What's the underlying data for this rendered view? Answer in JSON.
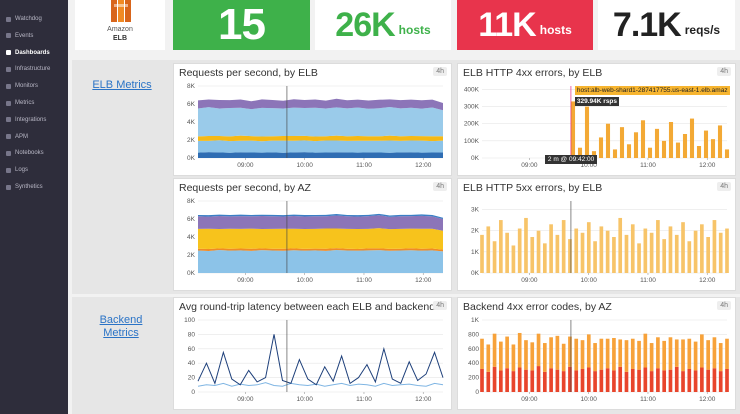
{
  "sidebar": {
    "items": [
      "Watchdog",
      "Events",
      "Dashboards",
      "Infrastructure",
      "Monitors",
      "Metrics",
      "Integrations",
      "APM",
      "Notebooks",
      "Logs",
      "Synthetics"
    ],
    "active": 2
  },
  "logo": {
    "line1": "Amazon",
    "line2": "ELB"
  },
  "stats": [
    {
      "value": "15",
      "unit": null,
      "style": "green"
    },
    {
      "value": "26K",
      "unit": "hosts",
      "style": "white-green"
    },
    {
      "value": "11K",
      "unit": "hosts",
      "style": "red"
    },
    {
      "value": "7.1K",
      "unit": "reqs/s",
      "style": "white"
    }
  ],
  "sections": [
    {
      "link": "ELB Metrics"
    },
    {
      "link": "Backend Metrics"
    }
  ],
  "widgets": [
    {
      "title": "Requests per second, by ELB",
      "badge": "4h",
      "type": "area",
      "ylim": [
        0,
        8000
      ],
      "yticks": [
        {
          "value": 0,
          "label": "0K"
        },
        {
          "value": 2000,
          "label": "2K"
        },
        {
          "value": 4000,
          "label": "4K"
        },
        {
          "value": 6000,
          "label": "6K"
        },
        {
          "value": 8000,
          "label": "8K"
        }
      ],
      "xlim": [
        492,
        740
      ],
      "xticks": [
        {
          "value": 540,
          "label": "09:00"
        },
        {
          "value": 600,
          "label": "10:00"
        },
        {
          "value": 660,
          "label": "11:00"
        },
        {
          "value": 720,
          "label": "12:00"
        }
      ],
      "cursor": 582,
      "series": [
        {
          "color": "#2f6db3",
          "values": [
            600,
            650,
            620,
            580,
            640,
            610,
            600,
            630,
            590,
            620,
            650,
            600,
            610,
            640,
            620,
            600,
            630,
            610,
            590,
            620,
            640,
            600,
            610,
            630
          ]
        },
        {
          "color": "#8cc3e8",
          "values": [
            1300,
            1250,
            1350,
            1300,
            1280,
            1320,
            1260,
            1300,
            1340,
            1290,
            1310,
            1270,
            1330,
            1300,
            1280,
            1320,
            1290,
            1310,
            1350,
            1280,
            1300,
            1330,
            1270,
            1300
          ]
        },
        {
          "color": "#f5b916",
          "values": [
            500,
            550,
            480,
            520,
            560,
            500,
            530,
            490,
            510,
            540,
            500,
            520,
            480,
            550,
            510,
            530,
            500,
            490,
            540,
            520,
            510,
            500,
            530,
            480
          ]
        },
        {
          "color": "#9acbea",
          "values": [
            3100,
            3200,
            3050,
            3150,
            3100,
            3000,
            3180,
            3120,
            3060,
            3150,
            3100,
            3200,
            3080,
            3140,
            3100,
            3160,
            3050,
            3120,
            3180,
            3100,
            3140,
            3060,
            3200,
            2900
          ]
        },
        {
          "color": "#8c75b8",
          "values": [
            900,
            850,
            950,
            880,
            920,
            870,
            940,
            900,
            860,
            930,
            890,
            910,
            870,
            950,
            900,
            880,
            920,
            940,
            860,
            910,
            890,
            930,
            870,
            800
          ]
        }
      ]
    },
    {
      "title": "ELB HTTP 4xx errors, by ELB",
      "badge": "4h",
      "type": "bar",
      "ylim": [
        0,
        420000
      ],
      "yticks": [
        {
          "value": 0,
          "label": "0K"
        },
        {
          "value": 100000,
          "label": "100K"
        },
        {
          "value": 200000,
          "label": "200K"
        },
        {
          "value": 300000,
          "label": "300K"
        },
        {
          "value": 400000,
          "label": "400K"
        }
      ],
      "xlim": [
        492,
        740
      ],
      "xticks": [
        {
          "value": 540,
          "label": "09:00"
        },
        {
          "value": 600,
          "label": "10:00"
        },
        {
          "value": 660,
          "label": "11:00"
        },
        {
          "value": 720,
          "label": "12:00"
        }
      ],
      "cursor": 582,
      "tooltip": {
        "host": "host:alb-web-shard1-287417755.us-east-1.elb.amaz",
        "value": "329.94K rsps",
        "time": "2 m @ 09:42:00"
      },
      "series": [
        {
          "color": "#f3a935",
          "values": [
            0,
            0,
            0,
            0,
            0,
            0,
            0,
            0,
            0,
            0,
            0,
            0,
            5000,
            329940,
            60000,
            300000,
            40000,
            120000,
            200000,
            50000,
            180000,
            80000,
            150000,
            220000,
            60000,
            170000,
            100000,
            210000,
            90000,
            140000,
            230000,
            70000,
            160000,
            110000,
            190000,
            50000
          ]
        }
      ]
    },
    {
      "title": "Requests per second, by AZ",
      "badge": "4h",
      "type": "area",
      "ylim": [
        0,
        8000
      ],
      "yticks": [
        {
          "value": 0,
          "label": "0K"
        },
        {
          "value": 2000,
          "label": "2K"
        },
        {
          "value": 4000,
          "label": "4K"
        },
        {
          "value": 6000,
          "label": "6K"
        },
        {
          "value": 8000,
          "label": "8K"
        }
      ],
      "xlim": [
        492,
        740
      ],
      "xticks": [
        {
          "value": 540,
          "label": "09:00"
        },
        {
          "value": 600,
          "label": "10:00"
        },
        {
          "value": 660,
          "label": "11:00"
        },
        {
          "value": 720,
          "label": "12:00"
        }
      ],
      "cursor": 582,
      "series": [
        {
          "color": "#8cc3e8",
          "values": [
            2500,
            2450,
            2550,
            2480,
            2520,
            2460,
            2540,
            2500,
            2470,
            2530,
            2490,
            2510,
            2460,
            2550,
            2500,
            2480,
            2520,
            2540,
            2470,
            2500,
            2530,
            2490,
            2510,
            2400
          ]
        },
        {
          "color": "#f08a24",
          "values": [
            200,
            220,
            190,
            210,
            200,
            230,
            190,
            200,
            220,
            210,
            190,
            200,
            230,
            210,
            200,
            190,
            220,
            200,
            210,
            190,
            220,
            200,
            210,
            200
          ]
        },
        {
          "color": "#f7c31c",
          "values": [
            2200,
            2250,
            2150,
            2220,
            2180,
            2240,
            2160,
            2200,
            2230,
            2170,
            2210,
            2190,
            2250,
            2180,
            2200,
            2220,
            2160,
            2240,
            2190,
            2210,
            2180,
            2230,
            2200,
            2100
          ]
        },
        {
          "color": "#8c75b8",
          "values": [
            1400,
            1350,
            1450,
            1380,
            1420,
            1370,
            1440,
            1400,
            1360,
            1430,
            1390,
            1410,
            1370,
            1450,
            1400,
            1380,
            1420,
            1440,
            1360,
            1410,
            1390,
            1430,
            1370,
            1300
          ]
        },
        {
          "color": "#3a7fc6",
          "values": [
            150,
            160,
            140,
            150,
            170,
            150,
            140,
            160,
            150,
            150,
            160,
            140,
            150,
            170,
            150,
            160,
            140,
            150,
            160,
            150,
            140,
            160,
            150,
            140
          ]
        }
      ]
    },
    {
      "title": "ELB HTTP 5xx errors, by ELB",
      "badge": "4h",
      "type": "bar",
      "ylim": [
        0,
        3400
      ],
      "yticks": [
        {
          "value": 0,
          "label": "0K"
        },
        {
          "value": 1000,
          "label": "1K"
        },
        {
          "value": 2000,
          "label": "2K"
        },
        {
          "value": 3000,
          "label": "3K"
        }
      ],
      "xlim": [
        492,
        740
      ],
      "xticks": [
        {
          "value": 540,
          "label": "09:00"
        },
        {
          "value": 600,
          "label": "10:00"
        },
        {
          "value": 660,
          "label": "11:00"
        },
        {
          "value": 720,
          "label": "12:00"
        }
      ],
      "cursor": 582,
      "series": [
        {
          "color": "#f7c469",
          "values": [
            1800,
            2200,
            1500,
            2500,
            1900,
            1300,
            2100,
            2600,
            1700,
            2000,
            1400,
            2300,
            1800,
            2500,
            1600,
            2100,
            1900,
            2400,
            1500,
            2200,
            2000,
            1700,
            2600,
            1800,
            2300,
            1400,
            2100,
            1900,
            2500,
            1600,
            2200,
            1800,
            2400,
            1500,
            2000,
            2300,
            1700,
            2500,
            1900,
            2100
          ]
        }
      ]
    },
    {
      "title": "Avg round-trip latency between each ELB and backend",
      "badge": "4h",
      "type": "line",
      "ylim": [
        0,
        100
      ],
      "yticks": [
        0,
        20,
        40,
        60,
        80,
        100
      ],
      "xlim": [
        492,
        740
      ],
      "xticks": [
        {
          "value": 540,
          "label": "09:00"
        },
        {
          "value": 600,
          "label": "10:00"
        },
        {
          "value": 660,
          "label": "11:00"
        },
        {
          "value": 720,
          "label": "12:00"
        }
      ],
      "cursor": 582,
      "series": [
        {
          "color": "#7fb5e3",
          "values": [
            8,
            10,
            9,
            12,
            8,
            11,
            9,
            10,
            13,
            9,
            8,
            12,
            10,
            9,
            11,
            8,
            10,
            12,
            9,
            11,
            10,
            8,
            12,
            9,
            10,
            11,
            9,
            8,
            12,
            10
          ]
        },
        {
          "color": "#1d3f7a",
          "values": [
            15,
            40,
            12,
            55,
            18,
            10,
            30,
            14,
            20,
            80,
            16,
            12,
            45,
            18,
            10,
            35,
            15,
            50,
            12,
            20,
            38,
            14,
            60,
            18,
            12,
            42,
            16,
            25,
            55,
            20
          ]
        }
      ]
    },
    {
      "title": "Backend 4xx error codes, by AZ",
      "badge": "4h",
      "type": "stackbar",
      "ylim": [
        0,
        1000
      ],
      "yticks": [
        0,
        200,
        400,
        600,
        800,
        {
          "value": 1000,
          "label": "1K"
        }
      ],
      "xlim": [
        492,
        740
      ],
      "xticks": [
        {
          "value": 540,
          "label": "09:00"
        },
        {
          "value": 600,
          "label": "10:00"
        },
        {
          "value": 660,
          "label": "11:00"
        },
        {
          "value": 720,
          "label": "12:00"
        }
      ],
      "cursor": 582,
      "series": [
        {
          "color": "#e8452c",
          "values": [
            320,
            280,
            350,
            300,
            330,
            290,
            340,
            310,
            300,
            360,
            280,
            330,
            310,
            290,
            350,
            300,
            320,
            340,
            290,
            310,
            330,
            300,
            350,
            280,
            320,
            310,
            340,
            290,
            330,
            300,
            310,
            350,
            290,
            320,
            300,
            340,
            310,
            330,
            290,
            320
          ]
        },
        {
          "color": "#f7a23a",
          "values": [
            420,
            380,
            460,
            400,
            440,
            370,
            480,
            410,
            390,
            450,
            400,
            430,
            470,
            380,
            420,
            440,
            400,
            460,
            390,
            430,
            410,
            450,
            380,
            440,
            420,
            400,
            470,
            390,
            430,
            410,
            450,
            380,
            440,
            420,
            400,
            460,
            410,
            430,
            390,
            420
          ]
        }
      ]
    }
  ]
}
